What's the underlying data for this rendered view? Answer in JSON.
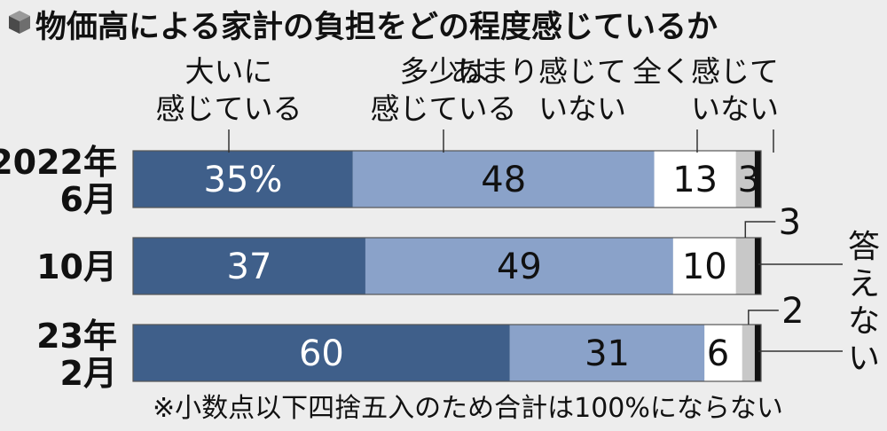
{
  "chart_data": {
    "type": "bar",
    "orientation": "horizontal",
    "stacked": true,
    "title": "物価高による家計の負担をどの程度感じているか",
    "categories": [
      [
        "2022年",
        "6月"
      ],
      [
        "10月"
      ],
      [
        "23年",
        "2月"
      ]
    ],
    "series": [
      {
        "name": [
          "大いに",
          "感じている"
        ],
        "values": [
          35,
          37,
          60
        ],
        "labels": [
          "35%",
          "37",
          "60"
        ],
        "color": "#3f5f8a",
        "label_color": "#ffffff"
      },
      {
        "name": [
          "多少は",
          "感じている"
        ],
        "values": [
          48,
          49,
          31
        ],
        "labels": [
          "48",
          "49",
          "31"
        ],
        "color": "#8aa2c9",
        "label_color": "#111111"
      },
      {
        "name": [
          "あまり感じて",
          "いない"
        ],
        "values": [
          13,
          10,
          6
        ],
        "labels": [
          "13",
          "10",
          "6"
        ],
        "color": "#ffffff",
        "label_color": "#111111"
      },
      {
        "name": [
          "全く感じて",
          "いない"
        ],
        "values": [
          3,
          3,
          2
        ],
        "labels": [
          "3",
          "3",
          "2"
        ],
        "color": "#c8c8c8",
        "label_color": "#111111"
      },
      {
        "name": [
          "答え",
          "ない"
        ],
        "values": [
          1,
          1,
          1
        ],
        "labels": [
          "",
          "",
          ""
        ],
        "color": "#111111",
        "label_color": "#111111"
      }
    ],
    "xlim": [
      0,
      100
    ],
    "footnote": "※小数点以下四捨五入のため合計は100%にならない"
  }
}
